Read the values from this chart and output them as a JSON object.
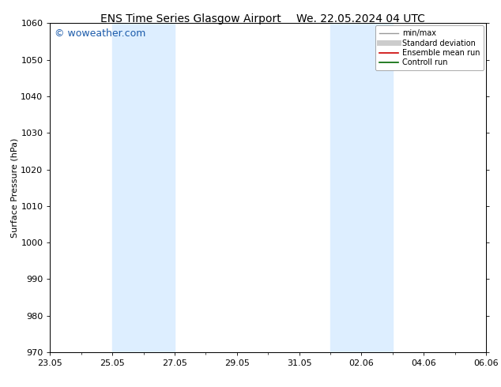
{
  "title_left": "ENS Time Series Glasgow Airport",
  "title_right": "We. 22.05.2024 04 UTC",
  "ylabel": "Surface Pressure (hPa)",
  "ylim": [
    970,
    1060
  ],
  "yticks": [
    970,
    980,
    990,
    1000,
    1010,
    1020,
    1030,
    1040,
    1050,
    1060
  ],
  "xlim": [
    0,
    14
  ],
  "x_tick_labels": [
    "23.05",
    "25.05",
    "27.05",
    "29.05",
    "31.05",
    "02.06",
    "04.06",
    "06.06"
  ],
  "x_tick_positions": [
    0,
    2,
    4,
    6,
    8,
    10,
    12,
    14
  ],
  "shade_bands": [
    {
      "x_start": 2,
      "x_end": 4
    },
    {
      "x_start": 9,
      "x_end": 11
    }
  ],
  "shade_color": "#ddeeff",
  "watermark_text": "© woweather.com",
  "watermark_color": "#1a5aaa",
  "legend_entries": [
    {
      "label": "min/max",
      "color": "#999999",
      "linewidth": 1.0
    },
    {
      "label": "Standard deviation",
      "color": "#cccccc",
      "linewidth": 5
    },
    {
      "label": "Ensemble mean run",
      "color": "#cc0000",
      "linewidth": 1.2
    },
    {
      "label": "Controll run",
      "color": "#006600",
      "linewidth": 1.2
    }
  ],
  "background_color": "#ffffff",
  "spine_color": "#000000",
  "title_fontsize": 10,
  "label_fontsize": 8,
  "tick_fontsize": 8,
  "legend_fontsize": 7,
  "watermark_fontsize": 9
}
